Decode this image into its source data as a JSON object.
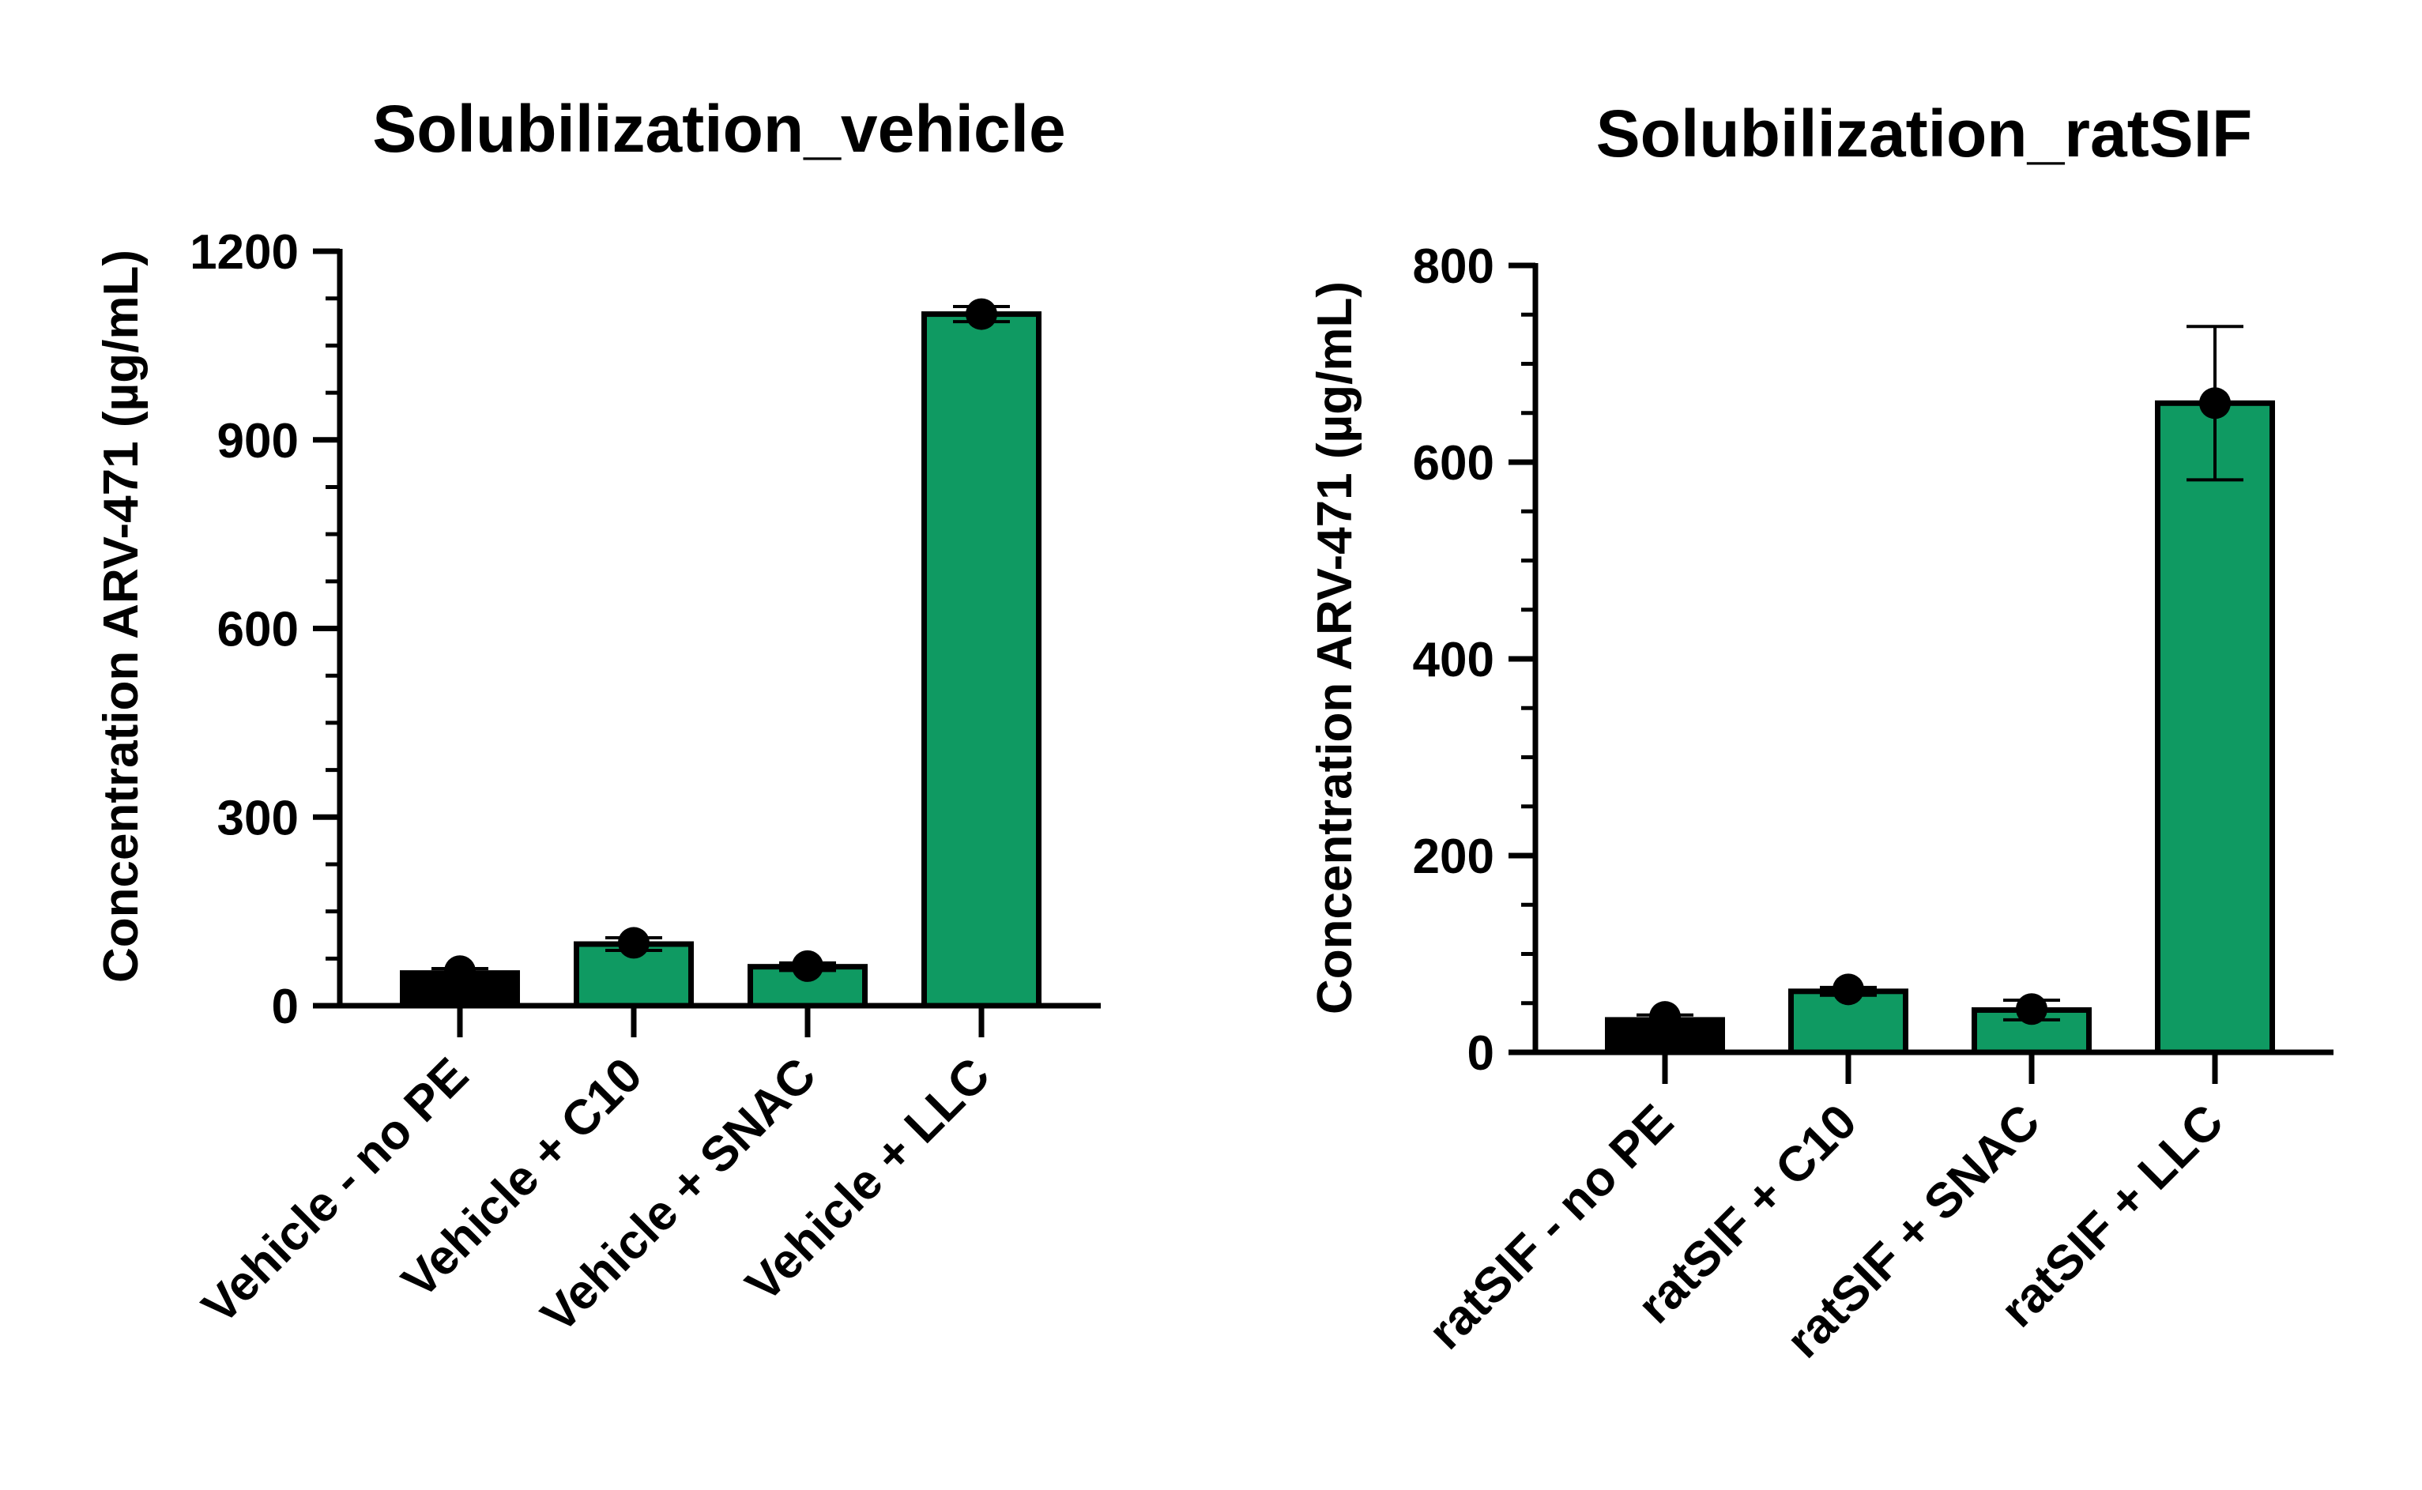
{
  "chart_data": [
    {
      "type": "bar",
      "title": "Solubilization_vehicle",
      "ylabel": "Concentration ARV-471 (µg/mL)",
      "xlabel": "",
      "categories": [
        "Vehicle - no PE",
        "Vehicle + C10",
        "Vehicle + SNAC",
        "Vehicle + LLC"
      ],
      "values": [
        52,
        98,
        62,
        1100
      ],
      "points": [
        55,
        100,
        63,
        1100
      ],
      "error": [
        7,
        10,
        6,
        12
      ],
      "bar_colors": [
        "#000000",
        "#0f9a62",
        "#0f9a62",
        "#0f9a62"
      ],
      "ylim": [
        0,
        1200
      ],
      "yticks": [
        0,
        300,
        600,
        900,
        1200
      ],
      "minor_step": 75,
      "grid": false,
      "legend": "none"
    },
    {
      "type": "bar",
      "title": "Solubilization_ratSIF",
      "ylabel": "Concentration ARV-471 (µg/mL)",
      "xlabel": "",
      "categories": [
        "ratSIF - no PE",
        "ratSIF + C10",
        "ratSIF + SNAC",
        "ratSIF + LLC"
      ],
      "values": [
        33,
        62,
        43,
        660
      ],
      "points": [
        36,
        64,
        44,
        660
      ],
      "error": [
        5,
        4,
        10,
        78
      ],
      "bar_colors": [
        "#000000",
        "#0f9a62",
        "#0f9a62",
        "#0f9a62"
      ],
      "ylim": [
        0,
        800
      ],
      "yticks": [
        0,
        200,
        400,
        600,
        800
      ],
      "minor_step": 50,
      "grid": false,
      "legend": "none"
    }
  ]
}
